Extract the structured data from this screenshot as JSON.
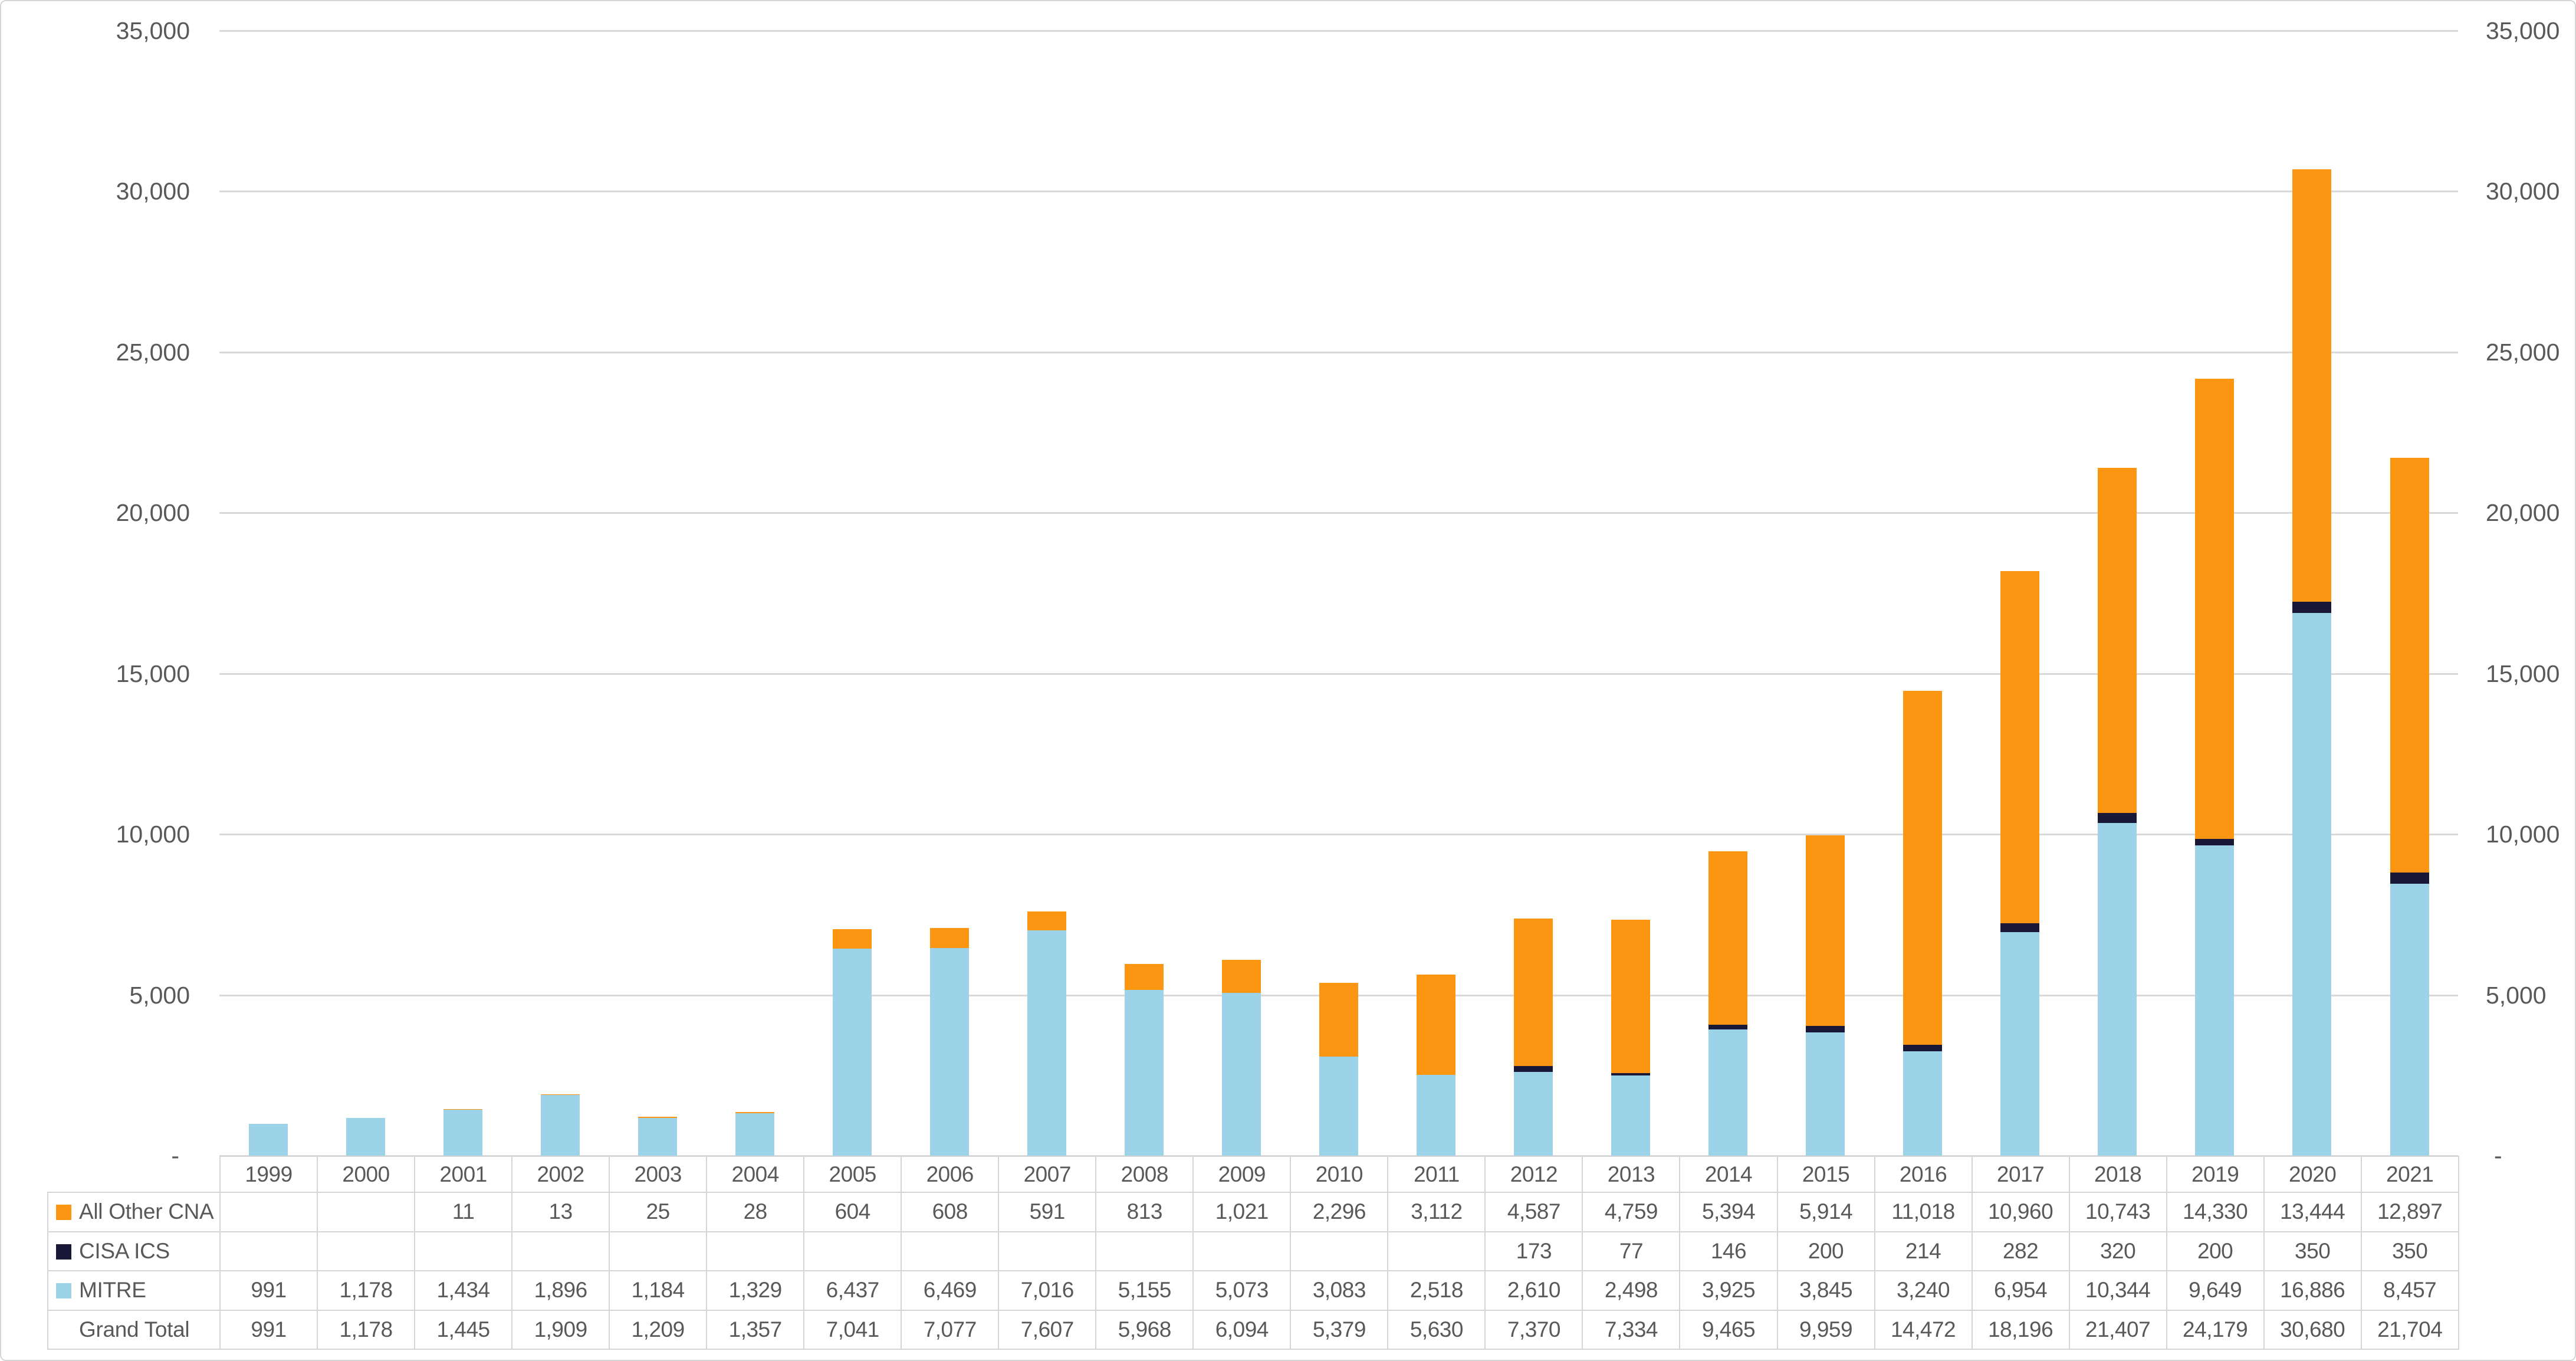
{
  "chart_data": {
    "type": "bar",
    "stacked": true,
    "title": "",
    "xlabel": "",
    "ylabel": "",
    "categories": [
      "1999",
      "2000",
      "2001",
      "2002",
      "2003",
      "2004",
      "2005",
      "2006",
      "2007",
      "2008",
      "2009",
      "2010",
      "2011",
      "2012",
      "2013",
      "2014",
      "2015",
      "2016",
      "2017",
      "2018",
      "2019",
      "2020",
      "2021"
    ],
    "series": [
      {
        "name": "MITRE",
        "color": "#9DD3E9",
        "values": [
          991,
          1178,
          1434,
          1896,
          1184,
          1329,
          6437,
          6469,
          7016,
          5155,
          5073,
          3083,
          2518,
          2610,
          2498,
          3925,
          3845,
          3240,
          6954,
          10344,
          9649,
          16886,
          8457
        ]
      },
      {
        "name": "CISA ICS",
        "color": "#1A1837",
        "values": [
          0,
          0,
          0,
          0,
          0,
          0,
          0,
          0,
          0,
          0,
          0,
          0,
          0,
          173,
          77,
          146,
          200,
          214,
          282,
          320,
          200,
          350,
          350
        ]
      },
      {
        "name": "All Other CNA",
        "color": "#FC9612",
        "values": [
          0,
          0,
          11,
          13,
          25,
          28,
          604,
          608,
          591,
          813,
          1021,
          2296,
          3112,
          4587,
          4759,
          5394,
          5914,
          11018,
          10960,
          10743,
          14330,
          13444,
          12897
        ]
      }
    ],
    "grand_total": [
      991,
      1178,
      1445,
      1909,
      1209,
      1357,
      7041,
      7077,
      7607,
      5968,
      6094,
      5379,
      5630,
      7370,
      7334,
      9465,
      9959,
      14472,
      18196,
      21407,
      24179,
      30680,
      21704
    ],
    "ylim": [
      0,
      35000
    ],
    "ytick_values": [
      35000,
      30000,
      25000,
      20000,
      15000,
      10000,
      5000,
      0
    ],
    "ytick_labels": [
      "35,000",
      "30,000",
      "25,000",
      "20,000",
      "15,000",
      "10,000",
      "5,000",
      "-"
    ],
    "grid": true,
    "gridline_color": "#D9D9D9",
    "axis_text_color": "#595959",
    "legend_position": "table-left"
  },
  "table": {
    "year_header": [
      "1999",
      "2000",
      "2001",
      "2002",
      "2003",
      "2004",
      "2005",
      "2006",
      "2007",
      "2008",
      "2009",
      "2010",
      "2011",
      "2012",
      "2013",
      "2014",
      "2015",
      "2016",
      "2017",
      "2018",
      "2019",
      "2020",
      "2021"
    ],
    "border_color": "#D6D6D6",
    "rows": [
      {
        "label": "All Other CNA",
        "swatch": "#FC9612",
        "values": [
          "",
          "",
          "11",
          "13",
          "25",
          "28",
          "604",
          "608",
          "591",
          "813",
          "1,021",
          "2,296",
          "3,112",
          "4,587",
          "4,759",
          "5,394",
          "5,914",
          "11,018",
          "10,960",
          "10,743",
          "14,330",
          "13,444",
          "12,897"
        ]
      },
      {
        "label": "CISA ICS",
        "swatch": "#1A1837",
        "values": [
          "",
          "",
          "",
          "",
          "",
          "",
          "",
          "",
          "",
          "",
          "",
          "",
          "",
          "173",
          "77",
          "146",
          "200",
          "214",
          "282",
          "320",
          "200",
          "350",
          "350"
        ]
      },
      {
        "label": "MITRE",
        "swatch": "#9DD3E9",
        "values": [
          "991",
          "1,178",
          "1,434",
          "1,896",
          "1,184",
          "1,329",
          "6,437",
          "6,469",
          "7,016",
          "5,155",
          "5,073",
          "3,083",
          "2,518",
          "2,610",
          "2,498",
          "3,925",
          "3,845",
          "3,240",
          "6,954",
          "10,344",
          "9,649",
          "16,886",
          "8,457"
        ]
      },
      {
        "label": "Grand Total",
        "swatch": null,
        "values": [
          "991",
          "1,178",
          "1,445",
          "1,909",
          "1,209",
          "1,357",
          "7,041",
          "7,077",
          "7,607",
          "5,968",
          "6,094",
          "5,379",
          "5,630",
          "7,370",
          "7,334",
          "9,465",
          "9,959",
          "14,472",
          "18,196",
          "21,407",
          "24,179",
          "30,680",
          "21,704"
        ]
      }
    ]
  }
}
